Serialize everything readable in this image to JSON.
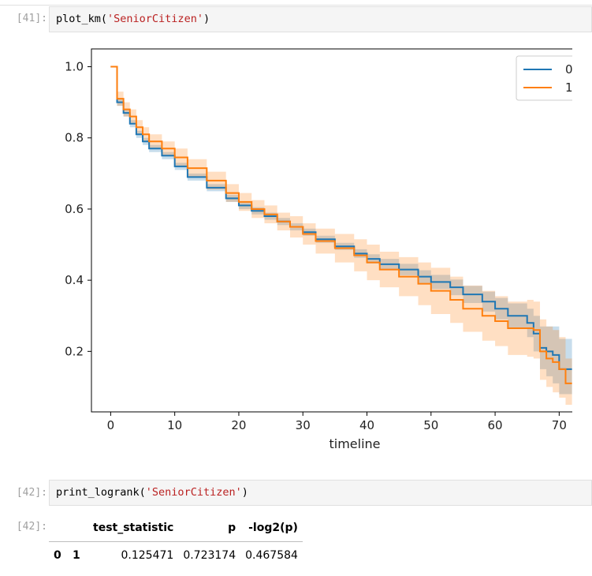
{
  "cells": [
    {
      "prompt": "[41]:",
      "code_func": "plot_km(",
      "code_arg": "'SeniorCitizen'",
      "code_end": ")"
    },
    {
      "prompt": "[42]:",
      "code_func": "print_logrank(",
      "code_arg": "'SeniorCitizen'",
      "code_end": ")"
    },
    {
      "prompt": "[42]:"
    }
  ],
  "colors": {
    "series0": "#1f77b4",
    "series1": "#ff7f0e"
  },
  "chart_data": {
    "type": "line",
    "step": true,
    "xlabel": "timeline",
    "ylabel": "",
    "xlim": [
      -3,
      75
    ],
    "ylim": [
      0.03,
      1.05
    ],
    "xticks": [
      0,
      10,
      20,
      30,
      40,
      50,
      60,
      70
    ],
    "yticks": [
      0.2,
      0.4,
      0.6,
      0.8,
      1.0
    ],
    "ytick_labels": [
      "0.2",
      "0.4",
      "0.6",
      "0.8",
      "1.0"
    ],
    "legend_position": "top-right",
    "series": [
      {
        "name": "0",
        "x": [
          0,
          1,
          2,
          3,
          4,
          5,
          6,
          8,
          10,
          12,
          15,
          18,
          20,
          22,
          24,
          26,
          28,
          30,
          32,
          35,
          38,
          40,
          42,
          45,
          48,
          50,
          53,
          55,
          58,
          60,
          62,
          65,
          66,
          67,
          68,
          69,
          70,
          72
        ],
        "y": [
          1.0,
          0.9,
          0.87,
          0.84,
          0.81,
          0.79,
          0.77,
          0.75,
          0.72,
          0.69,
          0.66,
          0.63,
          0.61,
          0.595,
          0.58,
          0.565,
          0.55,
          0.535,
          0.515,
          0.495,
          0.475,
          0.46,
          0.445,
          0.43,
          0.41,
          0.395,
          0.38,
          0.36,
          0.34,
          0.32,
          0.3,
          0.28,
          0.25,
          0.21,
          0.2,
          0.19,
          0.15,
          0.15
        ],
        "lower": [
          1.0,
          0.89,
          0.86,
          0.83,
          0.8,
          0.78,
          0.76,
          0.74,
          0.71,
          0.68,
          0.65,
          0.62,
          0.6,
          0.585,
          0.57,
          0.555,
          0.54,
          0.525,
          0.505,
          0.485,
          0.463,
          0.447,
          0.43,
          0.414,
          0.392,
          0.375,
          0.358,
          0.336,
          0.312,
          0.29,
          0.265,
          0.24,
          0.2,
          0.15,
          0.13,
          0.11,
          0.08,
          0.08
        ],
        "upper": [
          1.0,
          0.91,
          0.88,
          0.85,
          0.82,
          0.8,
          0.78,
          0.76,
          0.73,
          0.7,
          0.67,
          0.64,
          0.62,
          0.605,
          0.59,
          0.575,
          0.56,
          0.545,
          0.525,
          0.505,
          0.487,
          0.473,
          0.46,
          0.446,
          0.428,
          0.415,
          0.402,
          0.384,
          0.368,
          0.35,
          0.335,
          0.32,
          0.3,
          0.27,
          0.27,
          0.27,
          0.235,
          0.235
        ]
      },
      {
        "name": "1",
        "x": [
          0,
          1,
          2,
          3,
          4,
          5,
          6,
          8,
          10,
          12,
          15,
          18,
          20,
          22,
          24,
          26,
          28,
          30,
          32,
          35,
          38,
          40,
          42,
          45,
          48,
          50,
          53,
          55,
          58,
          60,
          62,
          65,
          66,
          67,
          68,
          69,
          70,
          71,
          72
        ],
        "y": [
          1.0,
          0.91,
          0.88,
          0.86,
          0.83,
          0.81,
          0.79,
          0.77,
          0.745,
          0.715,
          0.68,
          0.645,
          0.62,
          0.6,
          0.585,
          0.565,
          0.55,
          0.53,
          0.51,
          0.49,
          0.47,
          0.45,
          0.43,
          0.41,
          0.39,
          0.37,
          0.345,
          0.32,
          0.3,
          0.285,
          0.265,
          0.265,
          0.26,
          0.2,
          0.18,
          0.17,
          0.15,
          0.11,
          0.11
        ],
        "lower": [
          1.0,
          0.89,
          0.86,
          0.84,
          0.81,
          0.79,
          0.77,
          0.75,
          0.72,
          0.69,
          0.655,
          0.62,
          0.595,
          0.575,
          0.56,
          0.54,
          0.52,
          0.5,
          0.475,
          0.45,
          0.425,
          0.4,
          0.38,
          0.355,
          0.33,
          0.305,
          0.28,
          0.255,
          0.23,
          0.215,
          0.19,
          0.185,
          0.18,
          0.12,
          0.1,
          0.085,
          0.07,
          0.05,
          0.05
        ],
        "upper": [
          1.0,
          0.93,
          0.9,
          0.88,
          0.85,
          0.83,
          0.81,
          0.79,
          0.77,
          0.74,
          0.705,
          0.67,
          0.645,
          0.625,
          0.61,
          0.59,
          0.58,
          0.56,
          0.545,
          0.53,
          0.515,
          0.5,
          0.48,
          0.465,
          0.45,
          0.435,
          0.41,
          0.385,
          0.37,
          0.355,
          0.34,
          0.345,
          0.34,
          0.29,
          0.27,
          0.26,
          0.24,
          0.18,
          0.18
        ]
      }
    ]
  },
  "logrank_table": {
    "columns": [
      "test_statistic",
      "p",
      "-log2(p)"
    ],
    "rows": [
      {
        "index": [
          "0",
          "1"
        ],
        "values": [
          "0.125471",
          "0.723174",
          "0.467584"
        ]
      }
    ]
  }
}
